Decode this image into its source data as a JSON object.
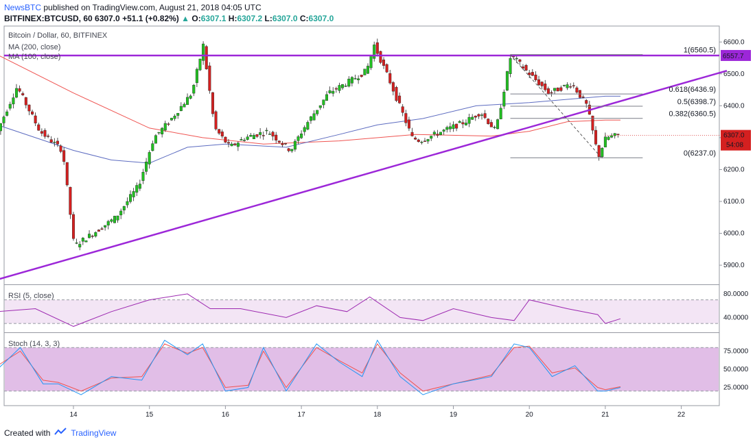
{
  "header": {
    "publisher": "NewsBTC",
    "published_text": "published on TradingView.com, August 21, 2018 04:05 UTC",
    "symbol": "BITFINEX:BTCUSD, 60",
    "ohlc_text": "6307.0",
    "change_text": "+51.1 (+0.82%)",
    "o_label": "O:",
    "o_value": "6307.1",
    "h_label": "H:",
    "h_value": "6307.2",
    "l_label": "L:",
    "l_value": "6307.0",
    "c_label": "C:",
    "c_value": "6307.0"
  },
  "footer": {
    "created_with": "Created with",
    "brand": "TradingView"
  },
  "colors": {
    "up": "#22c022",
    "down": "#d42020",
    "trend": "#9c27d8",
    "ma200": "#ef5350",
    "ma100": "#5c6bc0",
    "rsi": "#9c27b0",
    "stoch_k": "#2196f3",
    "stoch_d": "#ef5350",
    "band": "#e1bee7"
  },
  "chart_data": [
    {
      "type": "line",
      "title": "Bitcoin / Dollar, 60, BITFINEX",
      "legend": [
        "MA (200, close)",
        "MA (100, close)"
      ],
      "x_ticks": [
        "14",
        "15",
        "16",
        "17",
        "18",
        "19",
        "20",
        "21",
        "22"
      ],
      "y_ticks": [
        "6600.0",
        "6500.0",
        "6400.0",
        "6300.0",
        "6200.0",
        "6100.0",
        "6000.0",
        "5900.0"
      ],
      "ylim": [
        5840,
        6650
      ],
      "price_label": "6307.0",
      "countdown_label": "54:08",
      "resistance_label": "6557.7",
      "resistance": 6557.7,
      "fib_levels": [
        {
          "label": "1(6560.5)",
          "value": 6560.5
        },
        {
          "label": "0.618(6436.9)",
          "value": 6436.9
        },
        {
          "label": "0.5(6398.7)",
          "value": 6398.7
        },
        {
          "label": "0.382(6360.5)",
          "value": 6360.5
        },
        {
          "label": "0(6237.0)",
          "value": 6237.0
        }
      ],
      "trendline": [
        {
          "day": 13.0,
          "price": 5855
        },
        {
          "day": 22.6,
          "price": 6510
        }
      ],
      "series": [
        {
          "name": "Price",
          "x": [
            13.0,
            13.3,
            13.6,
            13.9,
            14.05,
            14.3,
            14.6,
            14.9,
            15.1,
            15.3,
            15.6,
            15.75,
            15.9,
            16.1,
            16.3,
            16.6,
            16.9,
            17.1,
            17.4,
            17.7,
            17.9,
            18.0,
            18.2,
            18.5,
            18.6,
            18.8,
            19.0,
            19.2,
            19.4,
            19.6,
            19.8,
            20.0,
            20.3,
            20.6,
            20.8,
            20.95,
            21.05,
            21.2
          ],
          "values": [
            6300,
            6460,
            6320,
            6260,
            5960,
            6000,
            6050,
            6150,
            6300,
            6350,
            6440,
            6590,
            6330,
            6270,
            6300,
            6320,
            6260,
            6340,
            6440,
            6480,
            6510,
            6590,
            6480,
            6300,
            6290,
            6310,
            6330,
            6350,
            6380,
            6320,
            6560,
            6510,
            6440,
            6470,
            6400,
            6240,
            6300,
            6307
          ]
        },
        {
          "name": "MA (200, close)",
          "x": [
            13.0,
            14.0,
            15.0,
            15.7,
            16.5,
            17.5,
            18.5,
            19.5,
            20.0,
            20.5,
            21.0,
            21.2
          ],
          "values": [
            6560,
            6440,
            6330,
            6300,
            6280,
            6290,
            6310,
            6305,
            6320,
            6350,
            6355,
            6355
          ]
        },
        {
          "name": "MA (100, close)",
          "x": [
            13.0,
            13.5,
            14.0,
            14.5,
            15.0,
            15.5,
            16.0,
            16.8,
            17.5,
            18.0,
            18.6,
            19.3,
            20.0,
            20.5,
            21.0,
            21.2
          ],
          "values": [
            6340,
            6300,
            6260,
            6230,
            6220,
            6270,
            6280,
            6270,
            6310,
            6340,
            6360,
            6400,
            6410,
            6420,
            6430,
            6430
          ]
        }
      ]
    },
    {
      "type": "line",
      "title": "RSI (5, close)",
      "y_ticks": [
        "80.0000",
        "40.0000"
      ],
      "ylim": [
        15,
        95
      ],
      "bands": [
        70,
        30
      ],
      "series": [
        {
          "name": "RSI (5, close)",
          "x": [
            13.0,
            13.5,
            14.0,
            14.5,
            15.0,
            15.5,
            15.8,
            16.2,
            16.8,
            17.2,
            17.6,
            17.9,
            18.3,
            18.6,
            19.0,
            19.5,
            19.8,
            20.0,
            20.5,
            20.9,
            21.0,
            21.2
          ],
          "values": [
            50,
            55,
            25,
            50,
            70,
            80,
            55,
            55,
            40,
            60,
            50,
            75,
            40,
            35,
            55,
            40,
            35,
            70,
            55,
            45,
            30,
            38
          ]
        }
      ]
    },
    {
      "type": "line",
      "title": "Stoch (14, 3, 3)",
      "y_ticks": [
        "75.0000",
        "50.0000",
        "25.0000"
      ],
      "ylim": [
        0,
        100
      ],
      "bands": [
        80,
        20
      ],
      "series": [
        {
          "name": "%K",
          "x": [
            13.0,
            13.3,
            13.6,
            13.8,
            14.1,
            14.5,
            14.9,
            15.2,
            15.5,
            15.7,
            16.0,
            16.3,
            16.5,
            16.8,
            17.2,
            17.5,
            17.8,
            18.0,
            18.3,
            18.6,
            19.0,
            19.5,
            19.8,
            20.0,
            20.3,
            20.6,
            20.9,
            21.0,
            21.2
          ],
          "values": [
            50,
            80,
            30,
            30,
            15,
            40,
            35,
            90,
            70,
            85,
            20,
            25,
            80,
            20,
            85,
            60,
            40,
            90,
            40,
            15,
            30,
            40,
            85,
            80,
            40,
            55,
            20,
            20,
            25
          ]
        },
        {
          "name": "%D",
          "x": [
            13.0,
            13.3,
            13.6,
            13.8,
            14.1,
            14.5,
            14.9,
            15.2,
            15.5,
            15.7,
            16.0,
            16.3,
            16.5,
            16.8,
            17.2,
            17.5,
            17.8,
            18.0,
            18.3,
            18.6,
            19.0,
            19.5,
            19.8,
            20.0,
            20.3,
            20.6,
            20.9,
            21.0,
            21.2
          ],
          "values": [
            55,
            75,
            35,
            32,
            20,
            38,
            40,
            85,
            72,
            80,
            25,
            28,
            75,
            25,
            80,
            62,
            45,
            85,
            45,
            20,
            30,
            42,
            80,
            82,
            45,
            52,
            25,
            22,
            26
          ]
        }
      ]
    }
  ]
}
